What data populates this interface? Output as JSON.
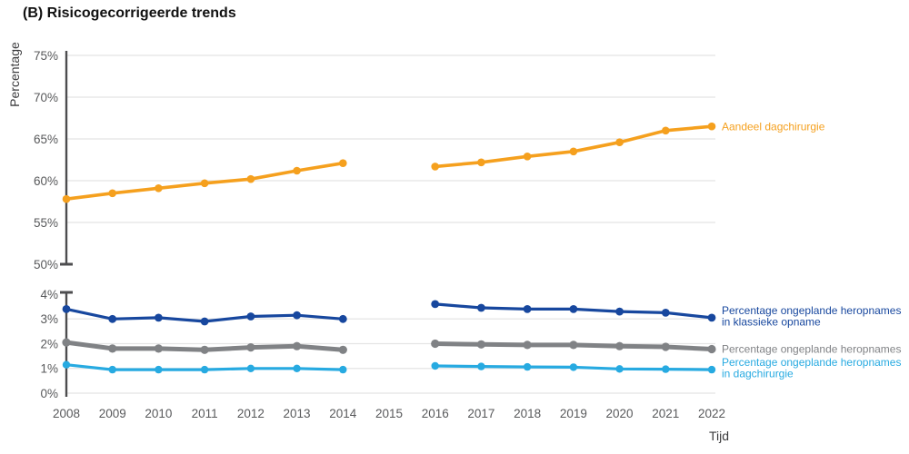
{
  "title": "(B) Risicogecorrigeerde trends",
  "chart_data": {
    "type": "line",
    "title": "(B) Risicogecorrigeerde trends",
    "xlabel": "Tijd",
    "ylabel": "Percentage",
    "x_ticks": [
      2008,
      2009,
      2010,
      2011,
      2012,
      2013,
      2014,
      2015,
      2016,
      2017,
      2018,
      2019,
      2020,
      2021,
      2022
    ],
    "missing_years": [
      2015
    ],
    "axis_break": true,
    "grid": true,
    "legend_position": "right-of-line-ends",
    "panels": [
      {
        "id": "top",
        "ylim": [
          50,
          75
        ],
        "tick_values": [
          75,
          70,
          65,
          60,
          55,
          50
        ],
        "tick_labels": [
          "75%",
          "70%",
          "65%",
          "60%",
          "55%",
          "50%"
        ],
        "gridline_values": [
          75,
          70,
          65,
          60,
          55
        ]
      },
      {
        "id": "bottom",
        "ylim": [
          0,
          4
        ],
        "tick_values": [
          4,
          3,
          2,
          1,
          0
        ],
        "tick_labels": [
          "4%",
          "3%",
          "2%",
          "1%",
          "0%"
        ],
        "gridline_values": [
          3,
          2,
          1,
          0
        ]
      }
    ],
    "series": [
      {
        "name": "Aandeel dagchirurgie",
        "panel": "top",
        "color": "#F5A01E",
        "label_lines": [
          "Aandeel dagchirurgie"
        ],
        "x": [
          2008,
          2009,
          2010,
          2011,
          2012,
          2013,
          2014,
          2016,
          2017,
          2018,
          2019,
          2020,
          2021,
          2022
        ],
        "values": [
          57.8,
          58.5,
          59.1,
          59.7,
          60.2,
          61.2,
          62.1,
          61.7,
          62.2,
          62.9,
          63.5,
          64.6,
          66.0,
          66.5
        ]
      },
      {
        "name": "Percentage ongeplande heropnames in klassieke opname",
        "panel": "bottom",
        "color": "#17479E",
        "label_lines": [
          "Percentage ongeplande heropnames",
          "in klassieke opname"
        ],
        "x": [
          2008,
          2009,
          2010,
          2011,
          2012,
          2013,
          2014,
          2016,
          2017,
          2018,
          2019,
          2020,
          2021,
          2022
        ],
        "values": [
          3.4,
          3.0,
          3.05,
          2.9,
          3.1,
          3.15,
          3.0,
          3.6,
          3.45,
          3.4,
          3.4,
          3.3,
          3.25,
          3.05
        ]
      },
      {
        "name": "Percentage ongeplande heropnames",
        "panel": "bottom",
        "color": "#808285",
        "label_lines": [
          "Percentage ongeplande heropnames"
        ],
        "x": [
          2008,
          2009,
          2010,
          2011,
          2012,
          2013,
          2014,
          2016,
          2017,
          2018,
          2019,
          2020,
          2021,
          2022
        ],
        "values": [
          2.05,
          1.8,
          1.8,
          1.75,
          1.85,
          1.9,
          1.75,
          2.0,
          1.97,
          1.95,
          1.95,
          1.9,
          1.87,
          1.78
        ]
      },
      {
        "name": "Percentage ongeplande heropnames in dagchirurgie",
        "panel": "bottom",
        "color": "#27AAE1",
        "label_lines": [
          "Percentage ongeplande heropnames",
          "in dagchirurgie"
        ],
        "x": [
          2008,
          2009,
          2010,
          2011,
          2012,
          2013,
          2014,
          2016,
          2017,
          2018,
          2019,
          2020,
          2021,
          2022
        ],
        "values": [
          1.15,
          0.95,
          0.95,
          0.95,
          1.0,
          1.0,
          0.95,
          1.1,
          1.08,
          1.06,
          1.05,
          0.98,
          0.97,
          0.95
        ]
      }
    ],
    "colors": {
      "axis": "#4D4D4F",
      "gridline": "#E4E4E4",
      "tick_text": "#58595B",
      "title_text": "#111111"
    }
  }
}
